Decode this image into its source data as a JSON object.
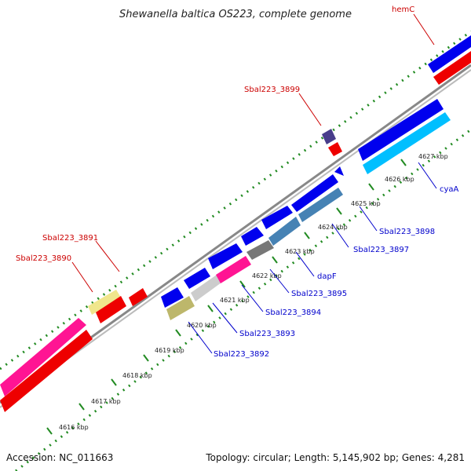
{
  "title": "Shewanella baltica OS223, complete genome",
  "footer": {
    "accession": "Accession: NC_011663",
    "summary": "Topology: circular; Length: 5,145,902 bp; Genes: 4,281"
  },
  "colors": {
    "backbone": "#888888",
    "ticks": "#228b22",
    "plus_strand_cds": "#0000ee",
    "minus_strand_cds": "#ee0000"
  },
  "kbp_labels": [
    "4616 kbp",
    "4617 kbp",
    "4618 kbp",
    "4619 kbp",
    "4620 kbp",
    "4621 kbp",
    "4622 kbp",
    "4623 kbp",
    "4624 kbp",
    "4625 kbp",
    "4626 kbp",
    "4627 kbp"
  ],
  "gene_labels": {
    "hemC": "hemC",
    "sbal3899": "Sbal223_3899",
    "sbal3891": "Sbal223_3891",
    "sbal3890": "Sbal223_3890",
    "cyaA": "cyaA",
    "sbal3898": "Sbal223_3898",
    "sbal3897": "Sbal223_3897",
    "dapF": "dapF",
    "sbal3895": "Sbal223_3895",
    "sbal3894": "Sbal223_3894",
    "sbal3893": "Sbal223_3893",
    "sbal3892": "Sbal223_3892"
  }
}
